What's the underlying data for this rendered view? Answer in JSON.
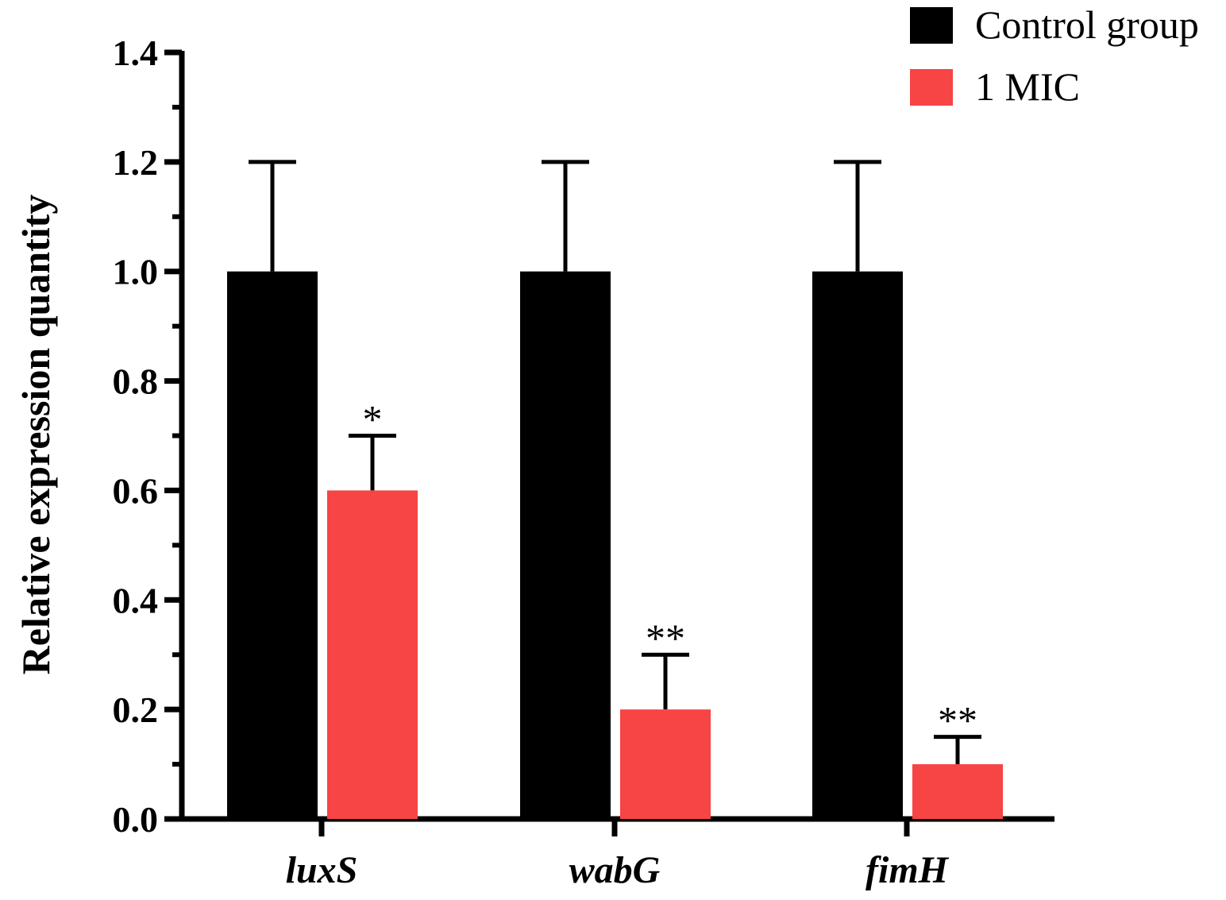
{
  "chart_data": {
    "type": "bar",
    "title": "",
    "xlabel": "",
    "ylabel": "Relative expression quantity",
    "ylim": [
      0,
      1.4
    ],
    "yticks": [
      "0.0",
      "0.2",
      "0.4",
      "0.6",
      "0.8",
      "1.0",
      "1.2",
      "1.4"
    ],
    "categories": [
      "luxS",
      "wabG",
      "fimH"
    ],
    "series": [
      {
        "name": "Control group",
        "color": "#000000",
        "values": [
          1.0,
          1.0,
          1.0
        ],
        "errors": [
          0.2,
          0.2,
          0.2
        ],
        "significance": [
          "",
          "",
          ""
        ]
      },
      {
        "name": "1 MIC",
        "color": "#f74444",
        "values": [
          0.6,
          0.2,
          0.1
        ],
        "errors": [
          0.1,
          0.1,
          0.05
        ],
        "significance": [
          "*",
          "**",
          "**"
        ]
      }
    ],
    "legend_position": "top-right",
    "grid": false
  }
}
